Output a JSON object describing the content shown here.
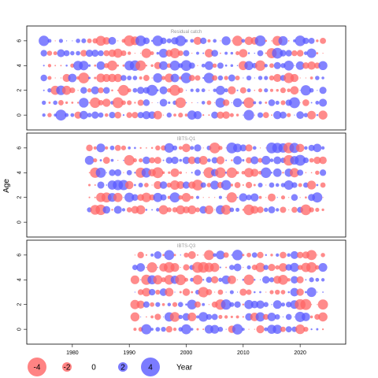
{
  "chart_data": {
    "type": "scatter",
    "ylabel": "Age",
    "xlabel": "Year",
    "xlim": [
      1972,
      2028
    ],
    "x_ticks": [
      "1980",
      "1990",
      "2000",
      "2010",
      "2020"
    ],
    "y_ticks": [
      "0",
      "2",
      "4",
      "6"
    ],
    "ylim": [
      -1.2,
      7.2
    ],
    "colors": {
      "positive": "#5a5aff",
      "negative": "#ff6464"
    },
    "legend": {
      "values": [
        "-4",
        "-2",
        "0",
        "2",
        "4"
      ],
      "title": "Year"
    },
    "panels": [
      {
        "title": "Residual catch",
        "year_start": 1975,
        "year_end": 2024,
        "ages": [
          0,
          1,
          2,
          3,
          4,
          5,
          6
        ]
      },
      {
        "title": "IBTS-Q1",
        "year_start": 1983,
        "year_end": 2024,
        "ages": [
          1,
          2,
          3,
          4,
          5,
          6
        ]
      },
      {
        "title": "IBTS-Q3",
        "year_start": 1991,
        "year_end": 2024,
        "ages": [
          0,
          1,
          2,
          3,
          4,
          5,
          6
        ]
      }
    ]
  }
}
